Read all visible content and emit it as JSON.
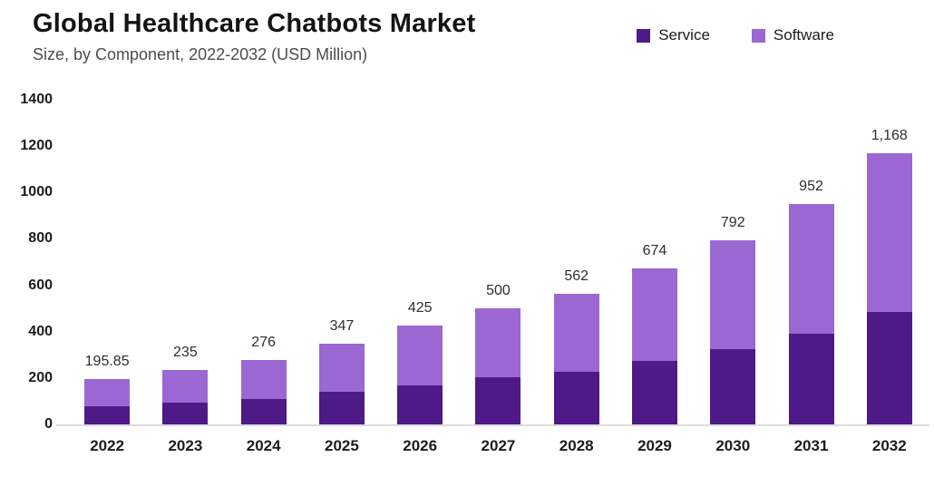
{
  "chart_data": {
    "type": "bar",
    "stacked": true,
    "title": "Global Healthcare Chatbots Market",
    "subtitle": "Size, by Component, 2022-2032 (USD Million)",
    "categories": [
      "2022",
      "2023",
      "2024",
      "2025",
      "2026",
      "2027",
      "2028",
      "2029",
      "2030",
      "2031",
      "2032"
    ],
    "series": [
      {
        "name": "Service",
        "color": "#4d1a87",
        "values": [
          80,
          94,
          110,
          142,
          168,
          205,
          228,
          275,
          325,
          390,
          485
        ]
      },
      {
        "name": "Software",
        "color": "#9a67d3",
        "values": [
          115.85,
          141,
          166,
          205,
          257,
          295,
          334,
          399,
          467,
          562,
          683
        ]
      }
    ],
    "totals": [
      195.85,
      235,
      276,
      347,
      425,
      500,
      562,
      674,
      792,
      952,
      1168
    ],
    "total_labels": [
      "195.85",
      "235",
      "276",
      "347",
      "425",
      "500",
      "562",
      "674",
      "792",
      "952",
      "1,168"
    ],
    "ylim": [
      0,
      1400
    ],
    "yticks": [
      0,
      200,
      400,
      600,
      800,
      1000,
      1200,
      1400
    ],
    "grid": false,
    "legend_position": "top-right",
    "colors": {
      "axis_text": "#1c1c1c",
      "data_label": "#2e2e2e",
      "baseline": "#dcdcdc"
    }
  }
}
